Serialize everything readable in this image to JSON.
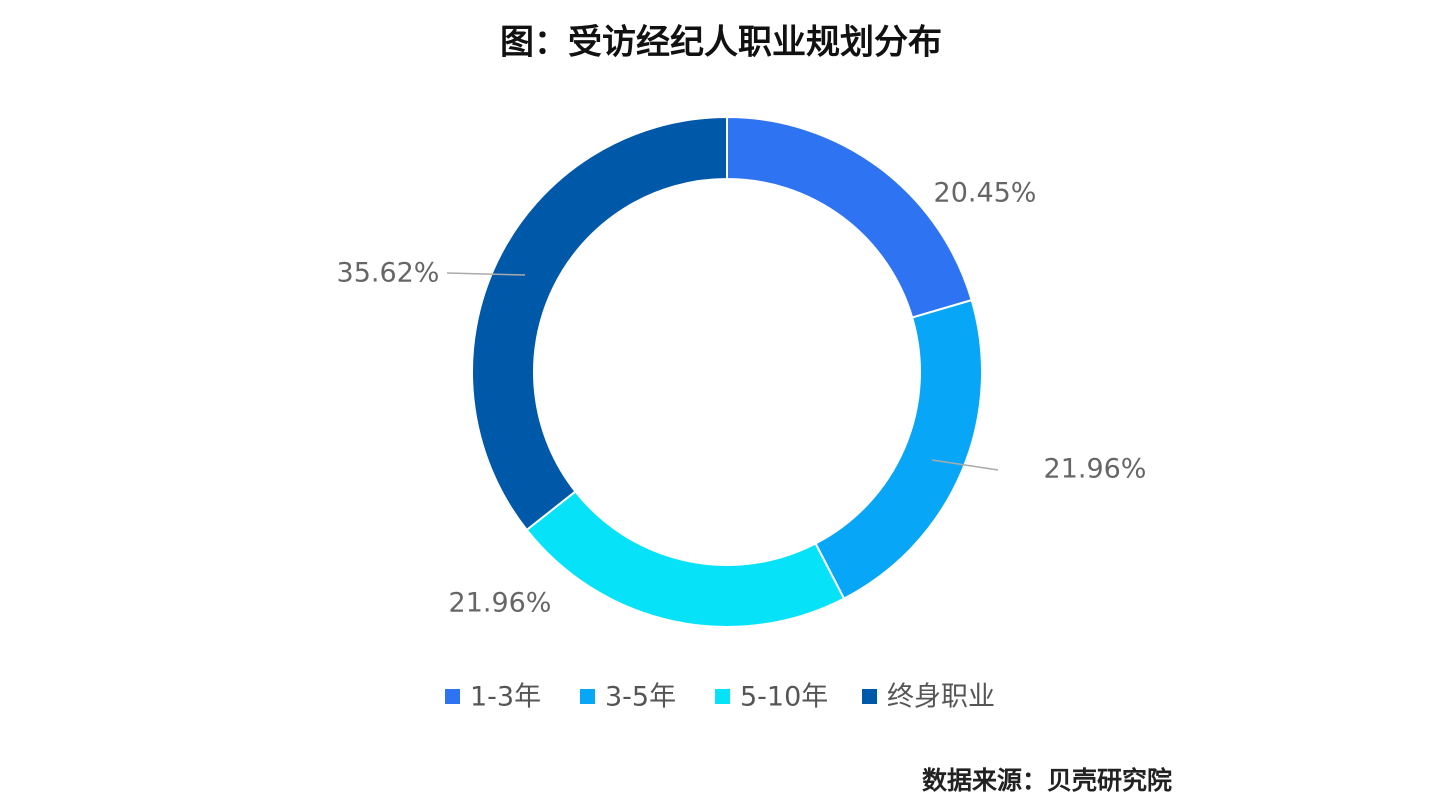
{
  "chart_data": {
    "type": "pie",
    "title": "图：受访经纪人职业规划分布",
    "categories": [
      "1-3年",
      "3-5年",
      "5-10年",
      "终身职业"
    ],
    "series": [
      {
        "values": [
          20.45,
          21.96,
          21.96,
          35.62
        ],
        "value_labels": [
          "20.45%",
          "21.96%",
          "21.96%",
          "35.62%"
        ],
        "colors": [
          "#2e74f2",
          "#08a6f6",
          "#06e2f8",
          "#0058a9"
        ]
      }
    ],
    "source": "数据来源：贝壳研究院"
  }
}
